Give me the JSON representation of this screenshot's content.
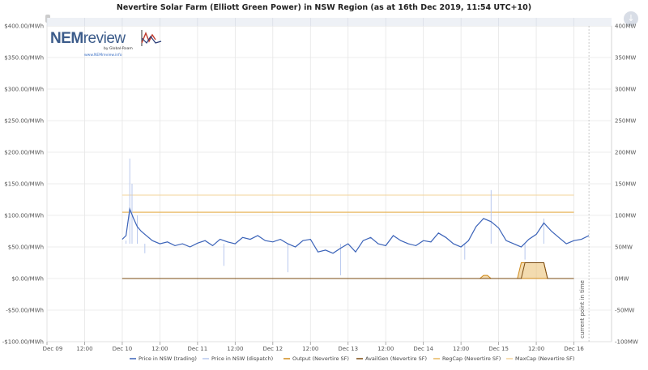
{
  "title": "Nevertire Solar Farm (Elliott Green Power) in NSW Region (as at 16th Dec 2019, 11:54 UTC+10)",
  "logo": {
    "main_dark": "NEM",
    "main_light": "review",
    "by": "by Global-Roam",
    "url": "www.NEMreview.info"
  },
  "colors": {
    "price_trading": "#3a62b8",
    "price_dispatch": "#b8c8ee",
    "output": "#d08a1a",
    "availgen": "#7a4a10",
    "regcap": "#e8b860",
    "maxcap": "#f3d39a",
    "grid": "#e6e6e6"
  },
  "chart_data": {
    "type": "line",
    "title": "Nevertire Solar Farm (Elliott Green Power) in NSW Region (as at 16th Dec 2019, 11:54 UTC+10)",
    "x_ticks": [
      "Dec 09",
      "12:00",
      "Dec 10",
      "12:00",
      "Dec 11",
      "12:00",
      "Dec 12",
      "12:00",
      "Dec 13",
      "12:00",
      "Dec 14",
      "12:00",
      "Dec 15",
      "12:00",
      "Dec 16"
    ],
    "y_left": {
      "ylim": [
        -100,
        400
      ],
      "ticks": [
        "-$100.00/MWh",
        "-$50.00/MWh",
        "$0.00/MWh",
        "$50.00/MWh",
        "$100.00/MWh",
        "$150.00/MWh",
        "$200.00/MWh",
        "$250.00/MWh",
        "$300.00/MWh",
        "$350.00/MWh",
        "$400.00/MWh"
      ]
    },
    "y_right": {
      "ylim": [
        -100,
        400
      ],
      "ticks": [
        "-100MW",
        "-50MW",
        "0MW",
        "50MW",
        "100MW",
        "150MW",
        "200MW",
        "250MW",
        "300MW",
        "350MW",
        "400MW"
      ]
    },
    "x_range_days": [
      0,
      7.5
    ],
    "current_point_label": "current point in time",
    "current_point_day": 7.2,
    "series": [
      {
        "name": "Price in NSW (trading)",
        "x_days": [
          1.0,
          1.05,
          1.1,
          1.15,
          1.2,
          1.25,
          1.3,
          1.4,
          1.5,
          1.6,
          1.7,
          1.8,
          1.9,
          2.0,
          2.1,
          2.2,
          2.3,
          2.4,
          2.5,
          2.6,
          2.7,
          2.8,
          2.9,
          3.0,
          3.1,
          3.2,
          3.3,
          3.4,
          3.5,
          3.6,
          3.7,
          3.8,
          3.9,
          4.0,
          4.1,
          4.2,
          4.3,
          4.4,
          4.5,
          4.6,
          4.7,
          4.8,
          4.9,
          5.0,
          5.1,
          5.2,
          5.3,
          5.4,
          5.5,
          5.6,
          5.7,
          5.8,
          5.9,
          6.0,
          6.1,
          6.2,
          6.3,
          6.4,
          6.5,
          6.6,
          6.7,
          6.8,
          6.9,
          7.0,
          7.1,
          7.2
        ],
        "values": [
          62,
          68,
          110,
          95,
          82,
          75,
          70,
          60,
          55,
          58,
          52,
          55,
          50,
          56,
          60,
          52,
          62,
          58,
          55,
          65,
          62,
          68,
          60,
          58,
          62,
          55,
          50,
          60,
          62,
          42,
          45,
          40,
          48,
          55,
          42,
          60,
          65,
          55,
          52,
          68,
          60,
          55,
          52,
          60,
          58,
          72,
          65,
          55,
          50,
          60,
          82,
          95,
          90,
          80,
          60,
          55,
          50,
          62,
          70,
          88,
          75,
          65,
          55,
          60,
          62,
          68
        ]
      },
      {
        "name": "Price in NSW (dispatch)",
        "x_days": [
          1.05,
          1.1,
          1.13,
          1.2,
          1.3,
          2.35,
          3.2,
          3.9,
          5.55,
          5.9,
          6.35,
          6.6
        ],
        "values": [
          60,
          190,
          150,
          100,
          40,
          20,
          10,
          5,
          30,
          140,
          30,
          95
        ]
      },
      {
        "name": "Output (Nevertire SF)",
        "x_days": [
          1.0,
          5.75,
          5.8,
          5.85,
          5.9,
          6.0,
          6.25,
          6.3,
          6.35,
          6.6,
          6.65,
          6.7,
          6.85,
          6.9,
          7.0
        ],
        "values": [
          0,
          0,
          5,
          5,
          0,
          0,
          0,
          25,
          25,
          25,
          0,
          0,
          0,
          0,
          0
        ]
      },
      {
        "name": "AvailGen (Nevertire SF)",
        "x_days": [
          1.0,
          6.3,
          6.35,
          6.6,
          6.65,
          7.0
        ],
        "values": [
          0,
          0,
          25,
          25,
          0,
          0
        ]
      },
      {
        "name": "RegCap (Nevertire SF)",
        "x_days": [
          1.0,
          7.0
        ],
        "values": [
          105,
          105
        ]
      },
      {
        "name": "MaxCap (Nevertire SF)",
        "x_days": [
          1.0,
          7.0
        ],
        "values": [
          132,
          132
        ]
      }
    ],
    "legend_position": "bottom",
    "grid": true
  }
}
